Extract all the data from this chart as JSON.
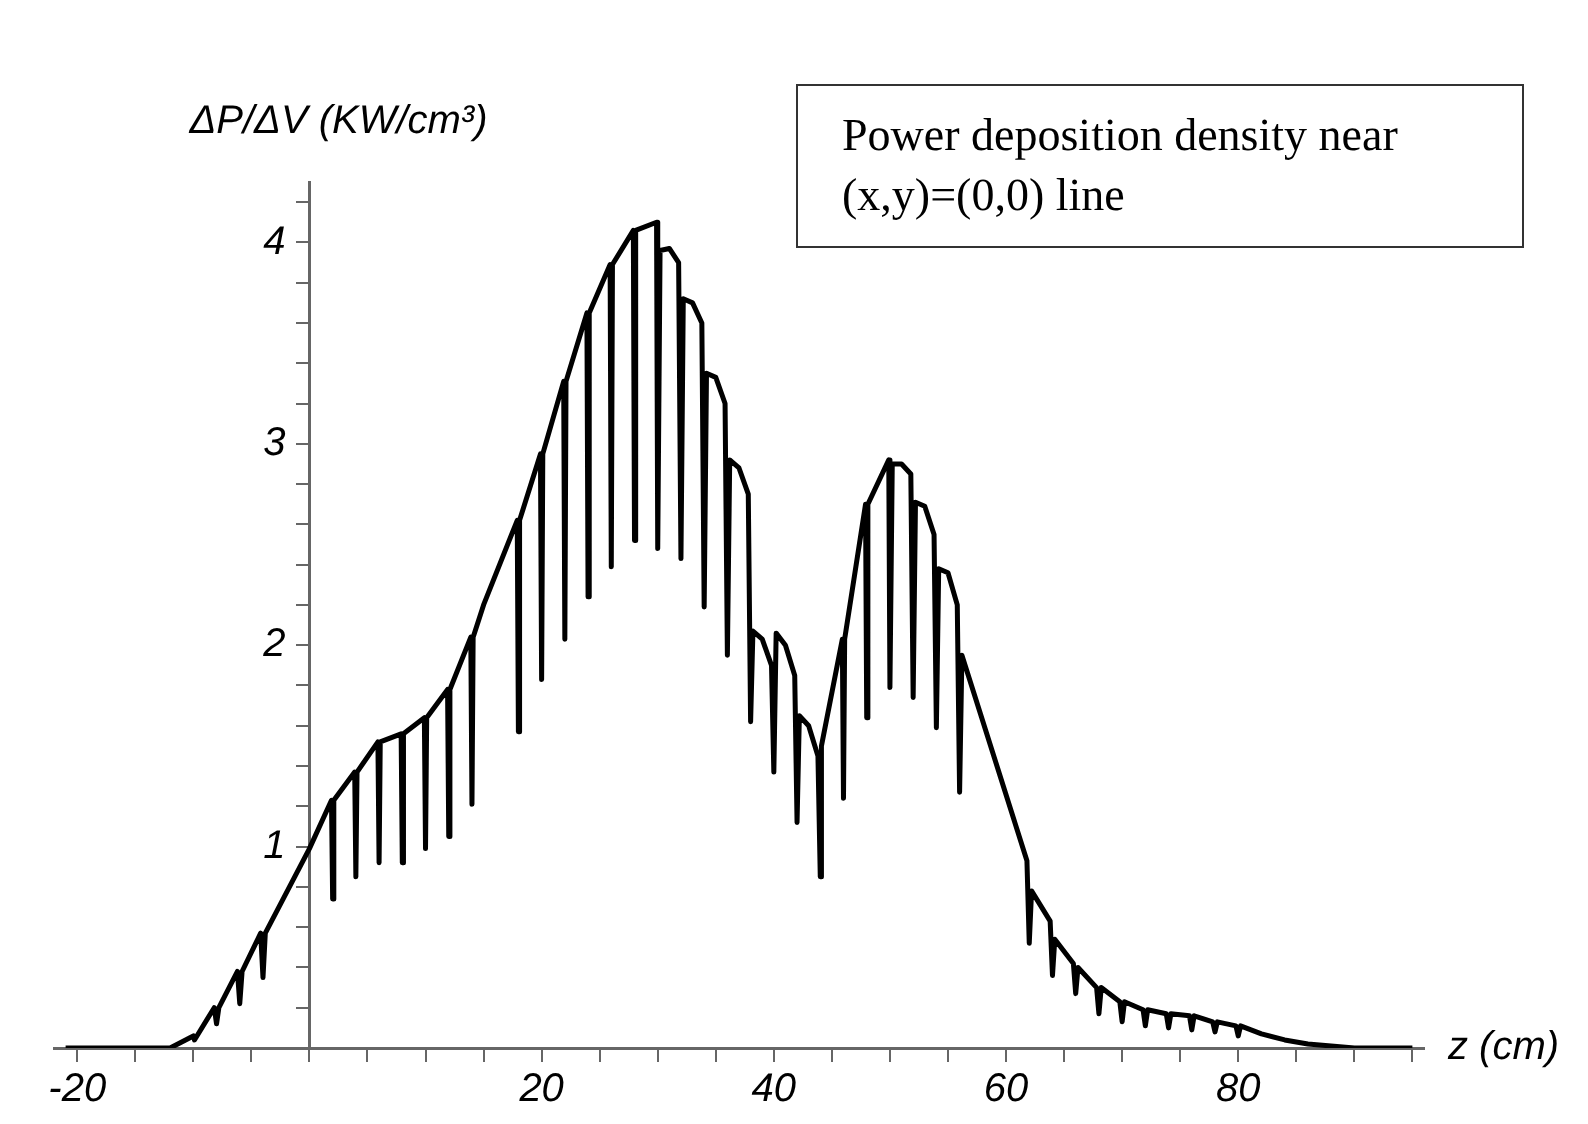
{
  "chart_data": {
    "type": "line",
    "title": "Power deposition density near (x,y)=(0,0) line",
    "xlabel": "z (cm)",
    "ylabel": "ΔP/ΔV (KW/cm³)",
    "x": [
      -21,
      -12,
      -11,
      -10,
      -9.9,
      -8.2,
      -8,
      -7.8,
      -6.2,
      -6,
      -5.8,
      -4.2,
      -4,
      -3.8,
      0,
      1.9,
      2,
      2.1,
      3.9,
      4,
      4.1,
      5.9,
      6,
      6.1,
      7.9,
      8,
      8.1,
      9.9,
      10,
      10.1,
      11.9,
      12,
      12.1,
      13.9,
      14,
      14.1,
      15,
      17.9,
      18,
      18.1,
      19.9,
      20,
      20.1,
      21.9,
      22,
      22.1,
      23.9,
      24,
      24.1,
      25.9,
      26,
      26.1,
      27.9,
      28,
      28.1,
      29.9,
      30,
      30.2,
      31,
      31.8,
      32,
      32.2,
      33,
      33.8,
      34,
      34.2,
      35,
      35.8,
      36,
      36.2,
      37,
      37.8,
      38,
      38.2,
      39,
      39.8,
      40,
      40.2,
      41,
      41.8,
      42,
      42.2,
      43,
      43.8,
      44,
      44.1,
      45.9,
      46,
      46.1,
      47.9,
      48,
      48.1,
      49.9,
      50,
      50.2,
      51,
      51.8,
      52,
      52.2,
      53,
      53.8,
      54,
      54.2,
      55,
      55.8,
      56,
      56.2,
      61.8,
      62,
      62.2,
      63.8,
      64,
      64.2,
      65.8,
      66,
      66.2,
      67.8,
      68,
      68.2,
      69.8,
      70,
      70.2,
      71.8,
      72,
      72.2,
      73.8,
      74,
      74.2,
      75.8,
      76,
      76.2,
      77.8,
      78,
      78.2,
      79.8,
      80,
      80.2,
      82,
      84,
      86,
      88,
      90,
      95
    ],
    "series": [
      {
        "color": "#000000",
        "values": [
          0,
          0,
          0.03,
          0.06,
          0.04,
          0.2,
          0.12,
          0.2,
          0.38,
          0.22,
          0.38,
          0.57,
          0.35,
          0.57,
          0.99,
          1.23,
          0.74,
          1.23,
          1.37,
          0.85,
          1.37,
          1.52,
          0.92,
          1.52,
          1.56,
          0.92,
          1.56,
          1.64,
          0.99,
          1.64,
          1.78,
          1.05,
          1.78,
          2.04,
          1.21,
          2.04,
          2.2,
          2.62,
          1.57,
          2.62,
          2.95,
          1.83,
          2.95,
          3.31,
          2.03,
          3.31,
          3.65,
          2.24,
          3.65,
          3.89,
          2.39,
          3.89,
          4.06,
          2.52,
          4.06,
          4.1,
          2.48,
          3.96,
          3.97,
          3.9,
          2.43,
          3.72,
          3.7,
          3.6,
          2.19,
          3.35,
          3.33,
          3.2,
          1.95,
          2.92,
          2.88,
          2.75,
          1.62,
          2.07,
          2.03,
          1.9,
          1.37,
          2.06,
          2,
          1.85,
          1.12,
          1.65,
          1.6,
          1.45,
          0.85,
          1.5,
          2.03,
          1.24,
          2.03,
          2.7,
          1.64,
          2.7,
          2.92,
          1.79,
          2.9,
          2.9,
          2.85,
          1.74,
          2.71,
          2.69,
          2.55,
          1.59,
          2.38,
          2.36,
          2.2,
          1.27,
          1.95,
          0.93,
          0.52,
          0.78,
          0.63,
          0.36,
          0.54,
          0.42,
          0.27,
          0.4,
          0.3,
          0.17,
          0.3,
          0.23,
          0.13,
          0.23,
          0.19,
          0.11,
          0.19,
          0.17,
          0.1,
          0.17,
          0.16,
          0.09,
          0.16,
          0.13,
          0.08,
          0.13,
          0.11,
          0.06,
          0.11,
          0.07,
          0.04,
          0.02,
          0.01,
          0,
          0
        ]
      }
    ],
    "xlim": [
      -22,
      96
    ],
    "ylim": [
      0,
      4.3
    ],
    "xticks": [
      -20,
      {
        "value": -15,
        "label": null
      },
      {
        "value": -10,
        "label": null
      },
      {
        "value": -5,
        "label": null
      },
      {
        "value": 0,
        "label": null
      },
      {
        "value": 5,
        "label": null
      },
      {
        "value": 10,
        "label": null
      },
      {
        "value": 15,
        "label": null
      },
      20,
      {
        "value": 25,
        "label": null
      },
      {
        "value": 30,
        "label": null
      },
      {
        "value": 35,
        "label": null
      },
      40,
      {
        "value": 45,
        "label": null
      },
      {
        "value": 50,
        "label": null
      },
      {
        "value": 55,
        "label": null
      },
      60,
      {
        "value": 65,
        "label": null
      },
      {
        "value": 70,
        "label": null
      },
      {
        "value": 75,
        "label": null
      },
      80,
      {
        "value": 85,
        "label": null
      },
      {
        "value": 90,
        "label": null
      },
      {
        "value": 95,
        "label": null
      }
    ],
    "yticks": [
      {
        "value": 0.2,
        "label": null
      },
      {
        "value": 0.4,
        "label": null
      },
      {
        "value": 0.6,
        "label": null
      },
      {
        "value": 0.8,
        "label": null
      },
      1,
      {
        "value": 1.2,
        "label": null
      },
      {
        "value": 1.4,
        "label": null
      },
      {
        "value": 1.6,
        "label": null
      },
      {
        "value": 1.8,
        "label": null
      },
      2,
      {
        "value": 2.2,
        "label": null
      },
      {
        "value": 2.4,
        "label": null
      },
      {
        "value": 2.6,
        "label": null
      },
      {
        "value": 2.8,
        "label": null
      },
      3,
      {
        "value": 3.2,
        "label": null
      },
      {
        "value": 3.4,
        "label": null
      },
      {
        "value": 3.6,
        "label": null
      },
      {
        "value": 3.8,
        "label": null
      },
      4,
      {
        "value": 4.2,
        "label": null
      }
    ],
    "grid": false,
    "legend": false,
    "marker": "none",
    "line_style": "solid"
  }
}
